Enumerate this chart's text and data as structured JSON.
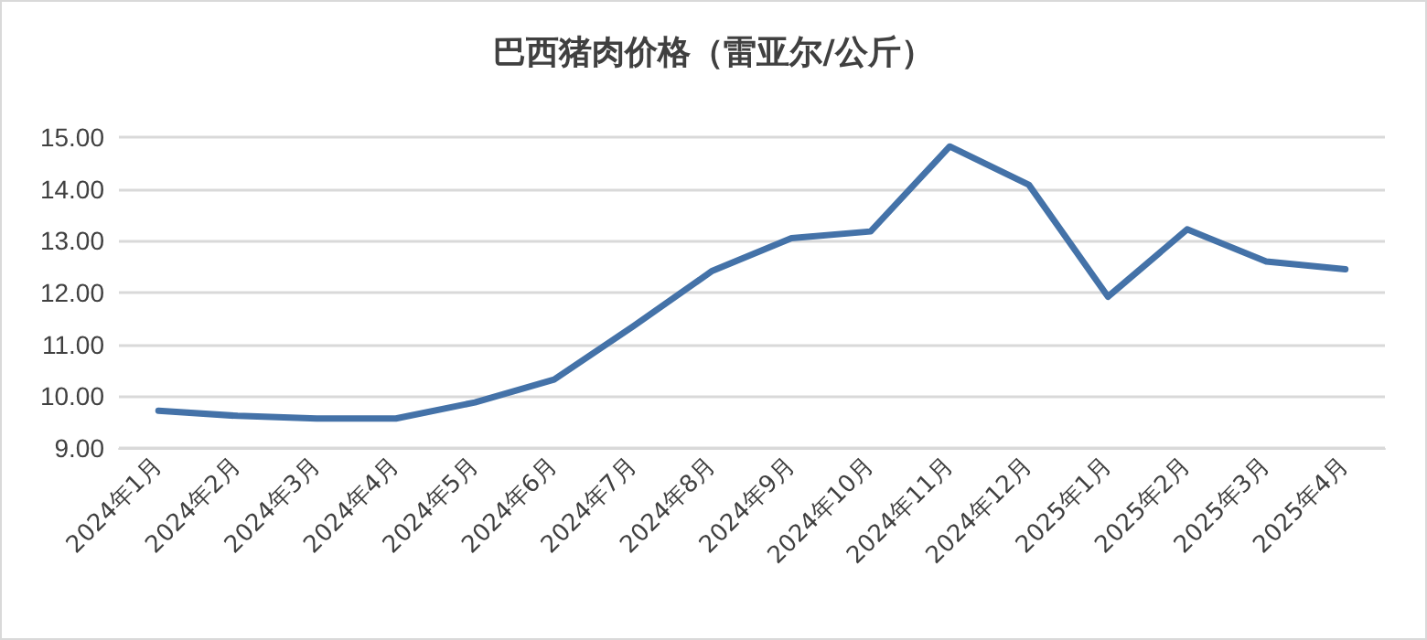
{
  "chart_data": {
    "type": "line",
    "title": "巴西猪肉价格（雷亚尔/公斤）",
    "categories": [
      "2024年1月",
      "2024年2月",
      "2024年3月",
      "2024年4月",
      "2024年5月",
      "2024年6月",
      "2024年7月",
      "2024年8月",
      "2024年9月",
      "2024年10月",
      "2024年11月",
      "2024年12月",
      "2025年1月",
      "2025年2月",
      "2025年3月",
      "2025年4月"
    ],
    "series": [
      {
        "color": "#4472a8",
        "values": [
          9.72,
          9.62,
          9.57,
          9.57,
          9.88,
          10.32,
          11.35,
          12.42,
          13.05,
          13.18,
          14.82,
          14.08,
          11.92,
          13.22,
          12.6,
          12.45
        ]
      }
    ],
    "ylim": [
      9,
      15
    ],
    "yticks": [
      {
        "value": 9,
        "label": "9.00"
      },
      {
        "value": 10,
        "label": "10.00"
      },
      {
        "value": 11,
        "label": "11.00"
      },
      {
        "value": 12,
        "label": "12.00"
      },
      {
        "value": 13,
        "label": "13.00"
      },
      {
        "value": 14,
        "label": "14.00"
      },
      {
        "value": 15,
        "label": "15.00"
      }
    ],
    "grid": "y",
    "marker": "none",
    "line_style": "solid"
  }
}
